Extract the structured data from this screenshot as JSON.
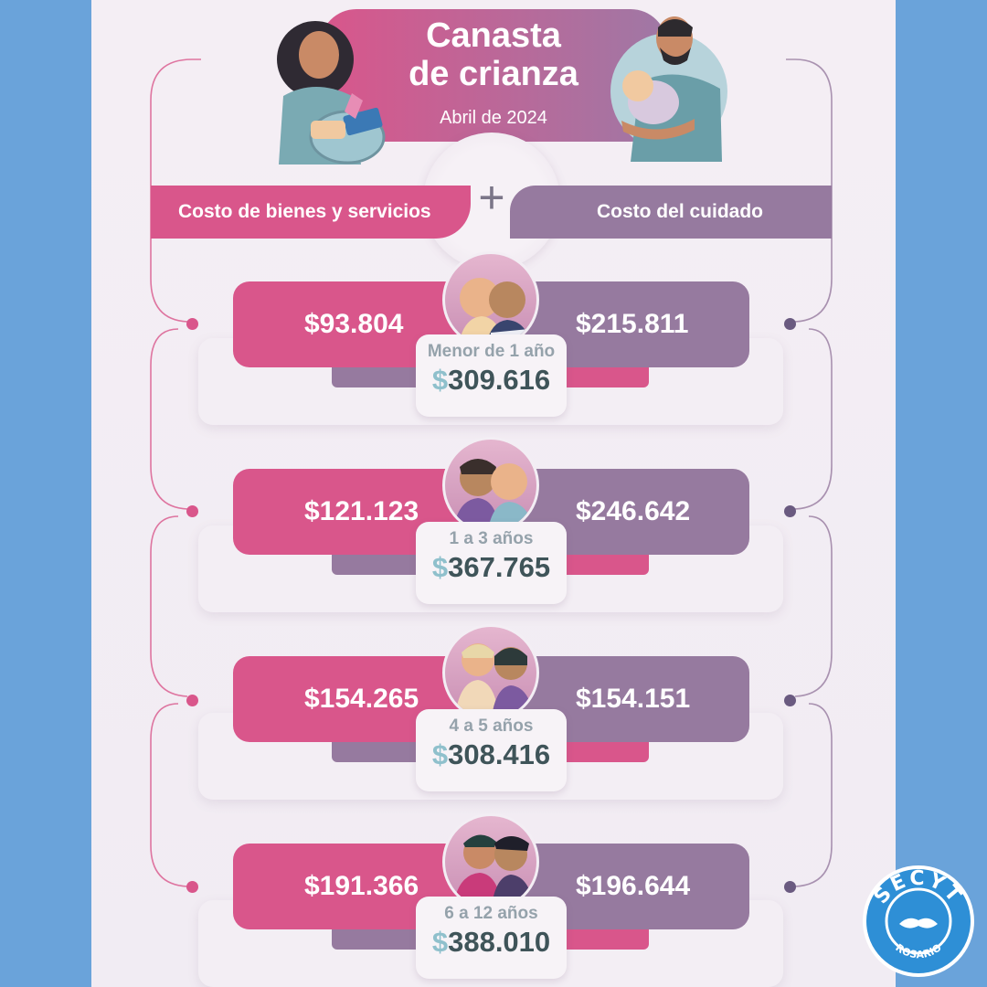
{
  "title": {
    "line1": "Canasta",
    "line2": "de crianza",
    "subtitle": "Abril de 2024"
  },
  "headers": {
    "goods": "Costo de bienes y servicios",
    "plus": "+",
    "care": "Costo del cuidado"
  },
  "colors": {
    "pink": "#d9568b",
    "mauve": "#967a9f",
    "background": "#6aa3da",
    "total_text": "#3f5459"
  },
  "rows": [
    {
      "goods": "$93.804",
      "care": "$215.811",
      "age": "Menor de 1 año",
      "total_symbol": "$",
      "total": "309.616"
    },
    {
      "goods": "$121.123",
      "care": "$246.642",
      "age": "1 a 3 años",
      "total_symbol": "$",
      "total": "367.765"
    },
    {
      "goods": "$154.265",
      "care": "$154.151",
      "age": "4 a 5 años",
      "total_symbol": "$",
      "total": "308.416"
    },
    {
      "goods": "$191.366",
      "care": "$196.644",
      "age": "6 a 12 años",
      "total_symbol": "$",
      "total": "388.010"
    }
  ],
  "logo": {
    "name": "SECYT",
    "place": "ROSARIO"
  }
}
